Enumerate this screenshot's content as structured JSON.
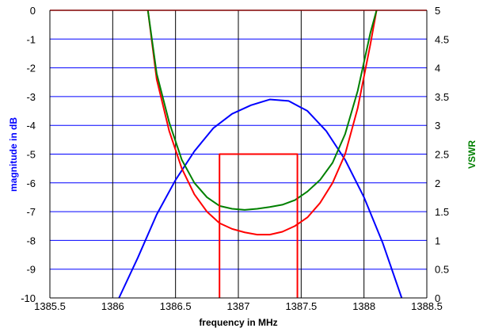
{
  "chart_data": {
    "type": "line",
    "xlabel": "frequency in MHz",
    "ylabel": "magnitude in dB",
    "y2label": "VSWR",
    "xlim": [
      1385.5,
      1388.5
    ],
    "ylim": [
      -10,
      0
    ],
    "y2lim": [
      0,
      5
    ],
    "grid": true,
    "x_ticks": [
      1385.5,
      1386,
      1386.5,
      1387,
      1387.5,
      1388,
      1388.5
    ],
    "y_ticks": [
      0,
      -1,
      -2,
      -3,
      -4,
      -5,
      -6,
      -7,
      -8,
      -9,
      -10
    ],
    "y2_ticks": [
      5,
      4.5,
      4,
      3.5,
      3,
      2.5,
      2,
      1.5,
      1,
      0.5,
      0
    ],
    "axis_colors": {
      "ylabel": "#0000ff",
      "y2label": "#008000",
      "grid": "#0000ff",
      "vgrid": "#000000",
      "frame_top": "#800000"
    },
    "series": [
      {
        "color": "#0000ff",
        "axis": "left",
        "x": [
          1386.05,
          1386.2,
          1386.35,
          1386.5,
          1386.65,
          1386.8,
          1386.95,
          1387.1,
          1387.25,
          1387.4,
          1387.55,
          1387.7,
          1387.85,
          1388.0,
          1388.15,
          1388.3
        ],
        "y": [
          -10,
          -8.6,
          -7.1,
          -5.9,
          -4.9,
          -4.1,
          -3.6,
          -3.3,
          -3.1,
          -3.15,
          -3.5,
          -4.2,
          -5.2,
          -6.5,
          -8.1,
          -10
        ]
      },
      {
        "color": "#ff0000",
        "axis": "right",
        "x": [
          1386.28,
          1386.35,
          1386.45,
          1386.55,
          1386.65,
          1386.75,
          1386.85,
          1386.95,
          1387.05,
          1387.15,
          1387.25,
          1387.35,
          1387.45,
          1387.55,
          1387.65,
          1387.75,
          1387.85,
          1387.95,
          1388.05,
          1388.1
        ],
        "y": [
          5,
          3.8,
          2.9,
          2.25,
          1.8,
          1.5,
          1.3,
          1.2,
          1.14,
          1.1,
          1.1,
          1.15,
          1.25,
          1.4,
          1.65,
          2.0,
          2.5,
          3.3,
          4.4,
          5
        ]
      },
      {
        "color": "#008000",
        "axis": "right",
        "x": [
          1386.28,
          1386.35,
          1386.45,
          1386.55,
          1386.65,
          1386.75,
          1386.85,
          1386.95,
          1387.05,
          1387.15,
          1387.25,
          1387.35,
          1387.45,
          1387.55,
          1387.65,
          1387.75,
          1387.85,
          1387.95,
          1388.05,
          1388.1
        ],
        "y": [
          5,
          3.9,
          3.05,
          2.4,
          2.0,
          1.75,
          1.6,
          1.55,
          1.53,
          1.55,
          1.58,
          1.62,
          1.7,
          1.85,
          2.05,
          2.35,
          2.85,
          3.6,
          4.6,
          5
        ]
      },
      {
        "color": "#ff0000",
        "axis": "right",
        "x": [
          1386.85,
          1386.85,
          1387.47,
          1387.47
        ],
        "y": [
          0,
          2.5,
          2.5,
          0
        ]
      }
    ]
  }
}
